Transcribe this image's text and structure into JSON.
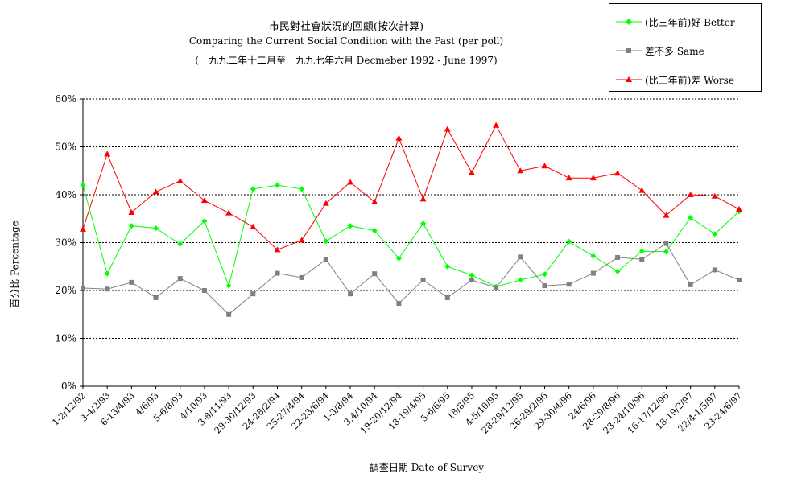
{
  "chart_data": {
    "type": "line",
    "title": "市民對社會狀況的回顧(按次計算)",
    "subtitle1": "Comparing the Current Social Condition with the Past  (per poll)",
    "subtitle2": "(一九九二年十二月至一九九七年六月 Decmeber 1992 - June 1997)",
    "xlabel": "調查日期 Date of Survey",
    "ylabel": "百分比 Percentage",
    "ylim": [
      0,
      60
    ],
    "yticks": [
      "0%",
      "10%",
      "20%",
      "30%",
      "40%",
      "50%",
      "60%"
    ],
    "grid": true,
    "legend_position": "top-right",
    "categories": [
      "1-2/12/92",
      "3-4/2/93",
      "6-13/4/93",
      "4/6/93",
      "5-6/8/93",
      "4/10/93",
      "3-8/11/93",
      "29-30/12/93",
      "24-28/2/94",
      "25-27/4/94",
      "22-23/6/94",
      "1-3/8/94",
      "3,4/10/94",
      "19-20/12/94",
      "18-19/4/95",
      "5-6/6/95",
      "18/8/95",
      "4-5/10/95",
      "28-29/12/95",
      "26-29/2/96",
      "29-30/4/96",
      "24/6/96",
      "28-29/8/96",
      "23-24/10/96",
      "16-17/12/96",
      "18-19/2/97",
      "22/4-1/5/97",
      "23-24/6/97"
    ],
    "series": [
      {
        "name": "(比三年前)好 Better",
        "color": "#00ff00",
        "marker": "diamond",
        "values": [
          42,
          23.5,
          33.5,
          33,
          29.7,
          34.5,
          21,
          41.2,
          42,
          41.2,
          30.3,
          33.5,
          32.5,
          26.7,
          34,
          25,
          23.2,
          20.8,
          22.2,
          23.4,
          30.2,
          27.2,
          24,
          28.2,
          28.1,
          35.2,
          31.8,
          36.5
        ]
      },
      {
        "name": "差不多 Same",
        "color": "#808080",
        "marker": "square",
        "values": [
          20.5,
          20.3,
          21.7,
          18.5,
          22.5,
          20,
          15,
          19.3,
          23.6,
          22.7,
          26.5,
          19.3,
          23.5,
          17.3,
          22.2,
          18.5,
          22.2,
          20.6,
          27,
          21,
          21.3,
          23.6,
          26.9,
          26.5,
          29.8,
          21.2,
          24.3,
          22.2
        ]
      },
      {
        "name": "(比三年前)差 Worse",
        "color": "#ff0000",
        "marker": "triangle",
        "values": [
          32.8,
          48.5,
          36.3,
          40.6,
          42.9,
          38.8,
          36.2,
          33.3,
          28.5,
          30.5,
          38.2,
          42.6,
          38.5,
          51.8,
          39.1,
          53.7,
          44.6,
          54.5,
          45,
          46,
          43.5,
          43.5,
          44.5,
          40.9,
          35.7,
          40,
          39.7,
          37
        ]
      }
    ]
  }
}
